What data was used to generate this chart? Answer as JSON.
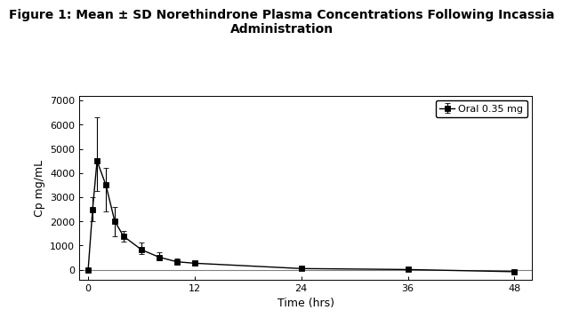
{
  "title": "Figure 1: Mean ± SD Norethindrone Plasma Concentrations Following Incassia\nAdministration",
  "xlabel": "Time (hrs)",
  "ylabel": "Cp mg/mL",
  "legend_label": "Oral 0.35 mg",
  "line_color": "#000000",
  "marker": "s",
  "markersize": 4,
  "linewidth": 1.0,
  "x": [
    0,
    0.5,
    1,
    2,
    3,
    4,
    6,
    8,
    10,
    12,
    24,
    36,
    48
  ],
  "y": [
    0,
    2500,
    4500,
    3500,
    2000,
    1380,
    830,
    520,
    330,
    270,
    50,
    10,
    -80
  ],
  "yerr_low": [
    0,
    500,
    1250,
    1100,
    600,
    230,
    180,
    130,
    100,
    100,
    0,
    0,
    0
  ],
  "yerr_high": [
    0,
    500,
    1800,
    700,
    600,
    230,
    280,
    200,
    120,
    100,
    0,
    0,
    0
  ],
  "xlim": [
    -1,
    50
  ],
  "ylim": [
    -400,
    7200
  ],
  "yticks": [
    0,
    1000,
    2000,
    3000,
    4000,
    5000,
    6000,
    7000
  ],
  "xticks": [
    0,
    12,
    24,
    36,
    48
  ],
  "title_fontsize": 10,
  "axis_label_fontsize": 9,
  "tick_fontsize": 8,
  "legend_fontsize": 8,
  "bg_color": "#ffffff",
  "plot_bg_color": "#ffffff"
}
